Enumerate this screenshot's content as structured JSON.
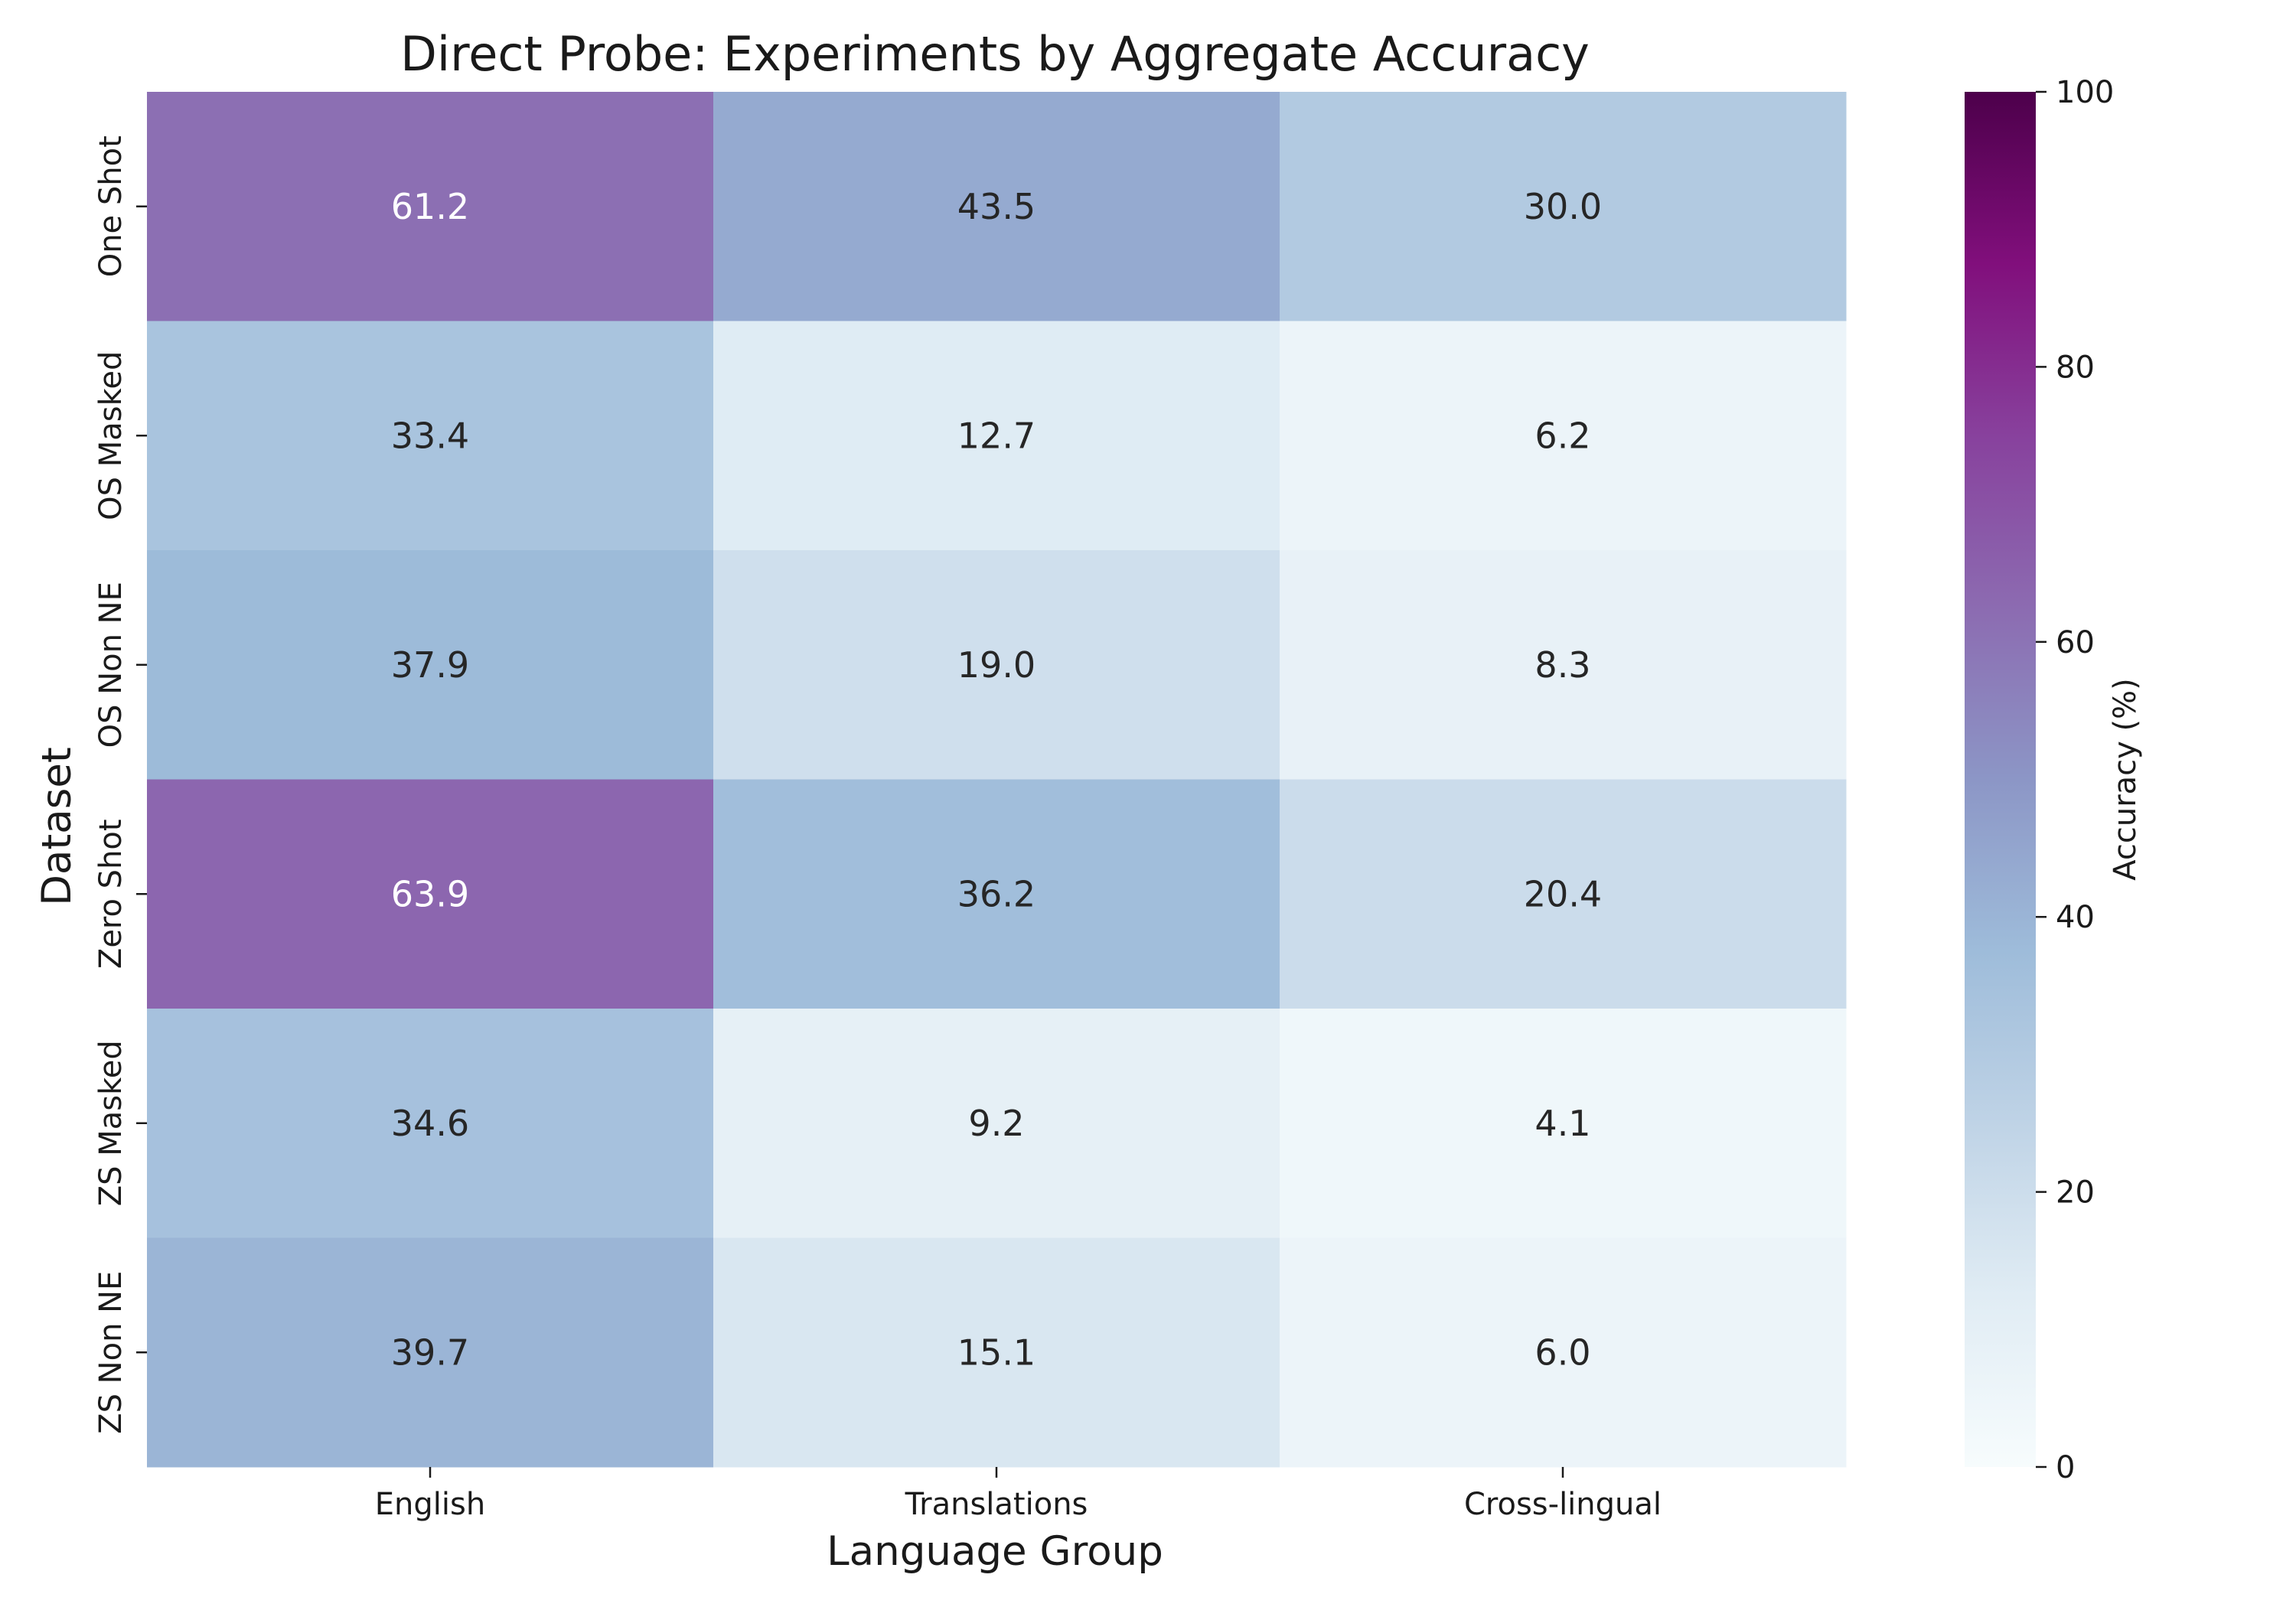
{
  "chart_data": {
    "type": "heatmap",
    "title": "Direct Probe: Experiments by Aggregate Accuracy",
    "xlabel": "Language Group",
    "ylabel": "Dataset",
    "x_categories": [
      "English",
      "Translations",
      "Cross-lingual"
    ],
    "y_categories": [
      "One Shot",
      "OS Masked",
      "OS Non NE",
      "Zero Shot",
      "ZS Masked",
      "ZS Non NE"
    ],
    "values": [
      [
        61.2,
        43.5,
        30.0
      ],
      [
        33.4,
        12.7,
        6.2
      ],
      [
        37.9,
        19.0,
        8.3
      ],
      [
        63.9,
        36.2,
        20.4
      ],
      [
        34.6,
        9.2,
        4.1
      ],
      [
        39.7,
        15.1,
        6.0
      ]
    ],
    "value_format": "0.1f",
    "colorbar": {
      "label": "Accuracy (%)",
      "range": [
        0,
        100
      ],
      "ticks": [
        0,
        20,
        40,
        60,
        80,
        100
      ],
      "colormap": "BuPu",
      "colors": [
        "#f7fcfd",
        "#e0ecf4",
        "#bfd3e6",
        "#9ebcda",
        "#8c96c6",
        "#8c6bb1",
        "#88419d",
        "#810f7c",
        "#4d004b"
      ]
    }
  }
}
